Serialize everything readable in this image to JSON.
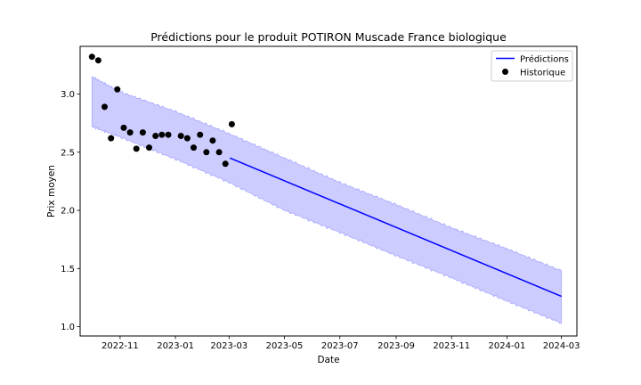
{
  "chart_data": {
    "type": "line",
    "title": "Prédictions pour le produit POTIRON Muscade France biologique",
    "xlabel": "Date",
    "ylabel": "Prix moyen",
    "xlim": [
      "2022-09-18",
      "2024-03-18"
    ],
    "ylim": [
      0.92,
      3.41
    ],
    "legend_position": "top-right",
    "grid": false,
    "x_ticks": [
      {
        "date": "2022-11-01",
        "label": "2022-11"
      },
      {
        "date": "2023-01-01",
        "label": "2023-01"
      },
      {
        "date": "2023-03-01",
        "label": "2023-03"
      },
      {
        "date": "2023-05-01",
        "label": "2023-05"
      },
      {
        "date": "2023-07-01",
        "label": "2023-07"
      },
      {
        "date": "2023-09-01",
        "label": "2023-09"
      },
      {
        "date": "2023-11-01",
        "label": "2023-11"
      },
      {
        "date": "2024-01-01",
        "label": "2024-01"
      },
      {
        "date": "2024-03-01",
        "label": "2024-03"
      }
    ],
    "y_ticks": [
      {
        "value": 1.0,
        "label": "1.0"
      },
      {
        "value": 1.5,
        "label": "1.5"
      },
      {
        "value": 2.0,
        "label": "2.0"
      },
      {
        "value": 2.5,
        "label": "2.5"
      },
      {
        "value": 3.0,
        "label": "3.0"
      }
    ],
    "series": [
      {
        "name": "Prédictions",
        "kind": "line",
        "color": "#0000ff",
        "points": [
          {
            "x": "2023-03-02",
            "y": 2.45
          },
          {
            "x": "2024-03-01",
            "y": 1.26
          }
        ]
      },
      {
        "name": "Historique",
        "kind": "scatter",
        "color": "#000000",
        "points": [
          {
            "x": "2022-10-01",
            "y": 3.32
          },
          {
            "x": "2022-10-08",
            "y": 3.29
          },
          {
            "x": "2022-10-15",
            "y": 2.89
          },
          {
            "x": "2022-10-22",
            "y": 2.62
          },
          {
            "x": "2022-10-29",
            "y": 3.04
          },
          {
            "x": "2022-11-05",
            "y": 2.71
          },
          {
            "x": "2022-11-12",
            "y": 2.67
          },
          {
            "x": "2022-11-19",
            "y": 2.53
          },
          {
            "x": "2022-11-26",
            "y": 2.67
          },
          {
            "x": "2022-12-03",
            "y": 2.54
          },
          {
            "x": "2022-12-10",
            "y": 2.64
          },
          {
            "x": "2022-12-17",
            "y": 2.65
          },
          {
            "x": "2022-12-24",
            "y": 2.65
          },
          {
            "x": "2023-01-07",
            "y": 2.64
          },
          {
            "x": "2023-01-14",
            "y": 2.62
          },
          {
            "x": "2023-01-21",
            "y": 2.54
          },
          {
            "x": "2023-01-28",
            "y": 2.65
          },
          {
            "x": "2023-02-04",
            "y": 2.5
          },
          {
            "x": "2023-02-11",
            "y": 2.6
          },
          {
            "x": "2023-02-18",
            "y": 2.5
          },
          {
            "x": "2023-02-25",
            "y": 2.4
          },
          {
            "x": "2023-03-04",
            "y": 2.74
          }
        ]
      }
    ],
    "confidence_band": {
      "color": "#0000ff",
      "opacity": 0.2,
      "points": [
        {
          "x": "2022-10-01",
          "lower": 2.72,
          "upper": 3.15
        },
        {
          "x": "2022-11-01",
          "lower": 2.63,
          "upper": 3.02
        },
        {
          "x": "2023-01-01",
          "lower": 2.44,
          "upper": 2.85
        },
        {
          "x": "2023-03-01",
          "lower": 2.24,
          "upper": 2.66
        },
        {
          "x": "2023-05-01",
          "lower": 2.0,
          "upper": 2.45
        },
        {
          "x": "2023-07-01",
          "lower": 1.81,
          "upper": 2.24
        },
        {
          "x": "2023-09-01",
          "lower": 1.61,
          "upper": 2.05
        },
        {
          "x": "2023-11-01",
          "lower": 1.42,
          "upper": 1.85
        },
        {
          "x": "2024-01-01",
          "lower": 1.22,
          "upper": 1.67
        },
        {
          "x": "2024-03-01",
          "lower": 1.03,
          "upper": 1.48
        }
      ]
    }
  }
}
